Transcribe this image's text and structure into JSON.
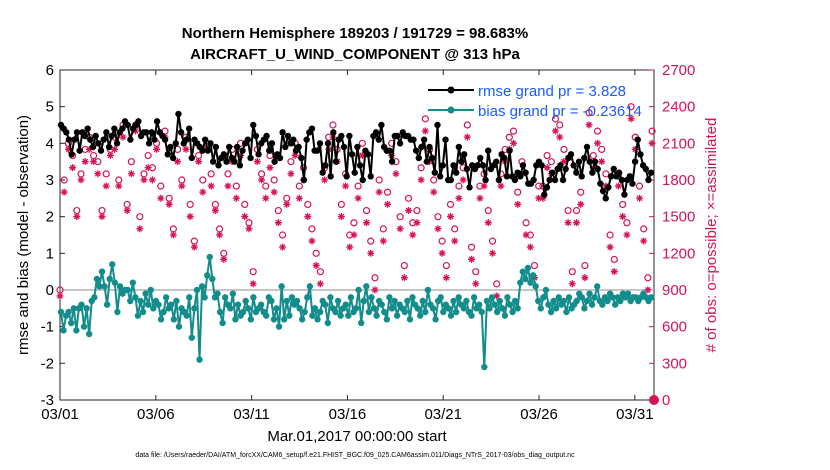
{
  "title_line1": "Northern Hemisphere 189203 / 191729 = 98.683%",
  "title_line2": "AIRCRAFT_U_WIND_COMPONENT @ 313 hPa",
  "xlabel": "Mar.01,2017 00:00:00 start",
  "ylabel_left": "rmse and bias (model - observation)",
  "ylabel_right": "# of obs: o=possible; ×=assimilated",
  "footer": "data file: /Users/raeder/DAI/ATM_forcXX/CAM6_setup/f.e21.FHIST_BGC.f09_025.CAM6assim.011/Diags_NTrS_2017-03/obs_diag_output.nc",
  "colors": {
    "rmse": "#000000",
    "bias": "#138c8c",
    "obs": "#d6125b",
    "legend_text": "#1a5cff",
    "zero_line": "#b3b3b3"
  },
  "chart_data": {
    "type": "line",
    "x_label_note": "time in days since Mar.01 (4 samples per day)",
    "x_ticks": [
      0,
      5,
      10,
      15,
      20,
      25,
      30
    ],
    "x_tick_labels": [
      "03/01",
      "03/06",
      "03/11",
      "03/16",
      "03/21",
      "03/26",
      "03/31"
    ],
    "xlim": [
      0,
      31
    ],
    "ylim_left": [
      -3,
      6
    ],
    "y_ticks_left": [
      -3,
      -2,
      -1,
      0,
      1,
      2,
      3,
      4,
      5,
      6
    ],
    "ylim_right": [
      0,
      2700
    ],
    "y_ticks_right": [
      0,
      300,
      600,
      900,
      1200,
      1500,
      1800,
      2100,
      2400,
      2700
    ],
    "legend": [
      "rmse grand pr = 3.828",
      "bias grand pr = -0.23614"
    ],
    "series": [
      {
        "name": "rmse",
        "axis": "left",
        "marker": "dot-line",
        "values": [
          4.5,
          4.4,
          4.3,
          4.1,
          3.7,
          4.1,
          4.3,
          3.8,
          4.3,
          4.2,
          4.4,
          4.1,
          3.9,
          4.2,
          4.0,
          3.8,
          4.1,
          4.3,
          3.9,
          4.2,
          4.4,
          4.0,
          4.3,
          4.4,
          4.6,
          4.5,
          4.1,
          4.4,
          4.5,
          4.6,
          4.2,
          4.3,
          4.3,
          4.0,
          4.3,
          4.1,
          4.6,
          4.3,
          4.2,
          4.1,
          3.7,
          3.9,
          3.6,
          4.0,
          4.8,
          4.3,
          4.0,
          4.1,
          4.4,
          3.6,
          4.1,
          4.0,
          3.9,
          3.8,
          4.1,
          3.8,
          4.0,
          3.5,
          3.9,
          3.4,
          3.6,
          3.7,
          3.5,
          3.9,
          3.6,
          3.5,
          3.9,
          3.4,
          3.8,
          4.0,
          4.1,
          3.6,
          4.5,
          4.2,
          3.7,
          4.0,
          4.1,
          4.2,
          3.8,
          4.0,
          3.5,
          3.7,
          3.6,
          4.3,
          3.9,
          4.2,
          4.0,
          4.1,
          3.8,
          3.9,
          3.6,
          3.0,
          4.1,
          4.3,
          4.4,
          3.8,
          3.8,
          4.0,
          3.2,
          3.4,
          4.0,
          3.1,
          4.3,
          3.5,
          4.1,
          4.2,
          3.9,
          3.1,
          4.2,
          3.7,
          3.2,
          3.9,
          3.4,
          3.0,
          3.8,
          3.7,
          3.1,
          4.2,
          4.3,
          4.1,
          4.5,
          3.9,
          3.8,
          3.8,
          3.5,
          4.2,
          4.2,
          4.0,
          4.3,
          4.2,
          4.2,
          4.1,
          4.1,
          3.8,
          3.6,
          3.9,
          4.1,
          3.5,
          3.9,
          3.6,
          3.2,
          4.5,
          3.1,
          3.4,
          4.1,
          3.0,
          3.0,
          3.4,
          3.2,
          3.9,
          3.5,
          3.7,
          3.3,
          2.8,
          3.4,
          3.3,
          3.4,
          3.6,
          3.4,
          3.0,
          3.8,
          3.3,
          3.4,
          3.5,
          3.0,
          3.7,
          3.6,
          3.1,
          3.8,
          3.1,
          3.0,
          3.2,
          3.1,
          3.4,
          3.2,
          2.9,
          2.9,
          3.0,
          3.4,
          3.5,
          3.4,
          2.6,
          2.8,
          3.0,
          3.2,
          3.0,
          3.3,
          3.4,
          3.0,
          3.3,
          3.6,
          3.7,
          3.4,
          3.2,
          3.5,
          3.1,
          3.6,
          3.9,
          3.5,
          3.2,
          3.5,
          3.3,
          2.9,
          2.7,
          2.5,
          2.8,
          3.1,
          3.3,
          3.1,
          3.2,
          3.0,
          2.6,
          3.0,
          3.1,
          2.9,
          3.5,
          4.1,
          3.7,
          3.4,
          3.3,
          3.0,
          3.2
        ]
      },
      {
        "name": "bias",
        "axis": "left",
        "marker": "dot-line",
        "values": [
          -0.6,
          -1.1,
          -0.7,
          -0.6,
          -0.9,
          -0.5,
          -1.1,
          -0.5,
          -0.4,
          -1.0,
          -0.5,
          -1.2,
          -0.3,
          -0.2,
          0.3,
          0.1,
          0.5,
          0.1,
          -0.4,
          0.3,
          0.7,
          0.2,
          -0.6,
          0.1,
          -0.1,
          0.0,
          0.0,
          -0.3,
          0.2,
          -0.2,
          -0.7,
          -0.3,
          -0.6,
          -0.1,
          -0.4,
          0.0,
          -0.5,
          -0.3,
          -0.4,
          -0.8,
          -0.6,
          -0.2,
          -0.5,
          -0.4,
          -0.8,
          -0.3,
          -1.0,
          -0.5,
          -0.6,
          -0.7,
          -0.2,
          -1.3,
          -0.5,
          0.0,
          -1.9,
          0.1,
          -0.2,
          0.4,
          0.9,
          0.3,
          -0.2,
          -0.1,
          -0.6,
          -0.9,
          -0.2,
          -0.4,
          -0.5,
          -0.1,
          -0.8,
          -0.4,
          -0.7,
          -0.6,
          -0.3,
          -0.5,
          -0.8,
          -0.2,
          -0.6,
          -0.5,
          -0.4,
          -0.6,
          -0.7,
          -0.2,
          -0.3,
          -0.8,
          -0.5,
          -1.0,
          0.1,
          -0.8,
          -0.3,
          -0.7,
          -0.2,
          -0.4,
          -0.3,
          -0.5,
          -0.8,
          -0.6,
          -0.2,
          0.1,
          -0.7,
          -0.5,
          -0.8,
          -0.6,
          -0.3,
          -0.4,
          -0.9,
          -0.2,
          -0.5,
          -0.6,
          -0.3,
          -0.7,
          -0.5,
          -0.4,
          -0.7,
          -0.2,
          -0.6,
          -0.5,
          0.0,
          -0.9,
          -0.3,
          0.1,
          -0.6,
          -0.2,
          -0.5,
          -0.7,
          -0.3,
          -0.4,
          -0.6,
          -0.8,
          -0.2,
          -0.5,
          -0.3,
          -0.7,
          -0.4,
          -0.5,
          -0.6,
          -0.3,
          -0.8,
          -0.2,
          -0.4,
          -0.5,
          -0.7,
          -0.3,
          -0.6,
          0.0,
          -0.4,
          -0.5,
          -0.8,
          -0.3,
          -0.2,
          -0.6,
          -0.4,
          -0.5,
          -0.7,
          -0.3,
          -0.6,
          -0.2,
          -0.4,
          -0.5,
          -0.3,
          -0.6,
          -0.7,
          -0.2,
          -0.5,
          -0.4,
          -0.6,
          -2.1,
          -0.3,
          -0.5,
          -0.2,
          -0.4,
          -0.6,
          -0.3,
          -0.5,
          -0.7,
          -0.2,
          -0.4,
          -0.6,
          -0.3,
          -0.5,
          0.2,
          0.5,
          0.3,
          0.6,
          0.2,
          0.4,
          0.1,
          -0.3,
          -0.5,
          -0.2,
          0.0,
          -0.4,
          -0.6,
          -0.3,
          -0.5,
          -0.2,
          -0.4,
          -0.3,
          -0.6,
          -0.2,
          -0.5,
          -0.4,
          -0.3,
          -0.1,
          -0.2,
          -0.5,
          -0.3,
          -0.1,
          -0.4,
          -0.2,
          0.1,
          -0.3,
          -0.4,
          -0.2,
          -0.3,
          -0.1,
          -0.2,
          -0.4,
          -0.2,
          -0.3,
          -0.1,
          -0.2,
          -0.1,
          -0.3,
          -0.2,
          -0.2,
          -0.3,
          -0.2,
          -0.1,
          -0.2,
          -0.3,
          -0.2
        ]
      },
      {
        "name": "obs possible",
        "axis": "right",
        "marker": "circle",
        "values": [
          900,
          1800,
          2100,
          2000,
          1550,
          1850,
          2050,
          2150,
          2000,
          1950,
          1550,
          1850,
          2050,
          2150,
          1800,
          2250,
          1600,
          1950,
          2250,
          1500,
          1850,
          2000,
          1900,
          2100,
          1750,
          2200,
          1650,
          1400,
          2050,
          1800,
          2150,
          1600,
          1300,
          2000,
          1800,
          2100,
          1850,
          1600,
          1400,
          1200,
          1850,
          2050,
          1750,
          2100,
          1600,
          1450,
          1050,
          2050,
          1850,
          1750,
          2000,
          1800,
          1550,
          1350,
          1650,
          1950,
          2100,
          1750,
          1900,
          1600,
          1400,
          1200,
          1050,
          1900,
          2150,
          2250,
          2050,
          1600,
          1850,
          1350,
          1450,
          1750,
          2100,
          1550,
          1300,
          1000,
          1800,
          1400,
          1700,
          2100,
          1950,
          1500,
          1100,
          1650,
          1450,
          1550,
          1900,
          2300,
          2050,
          1800,
          1500,
          1300,
          1100,
          1600,
          1400,
          1750,
          1900,
          2250,
          1250,
          1050,
          1750,
          1850,
          1550,
          1300,
          950,
          1850,
          2050,
          2150,
          2200,
          1700,
          1950,
          1450,
          1350,
          1100,
          1750,
          1750,
          2000,
          1950,
          2300,
          2250,
          2050,
          1550,
          1050,
          1550,
          1700,
          1100,
          2350,
          2000,
          2200,
          2050,
          1850,
          1350,
          1150,
          1850,
          1600,
          1450,
          2400,
          2150,
          1750,
          1400,
          1000,
          2200
        ]
      },
      {
        "name": "obs assimilated",
        "axis": "right",
        "marker": "asterisk",
        "values": [
          900,
          1750,
          2100,
          1950,
          1550,
          1850,
          2000,
          2100,
          2000,
          1900,
          1550,
          1800,
          2050,
          2100,
          1800,
          2200,
          1600,
          1900,
          2250,
          1450,
          1850,
          1950,
          1850,
          2100,
          1700,
          2200,
          1650,
          1400,
          2000,
          1800,
          2100,
          1550,
          1300,
          2000,
          1750,
          2100,
          1800,
          1600,
          1400,
          1200,
          1800,
          2000,
          1700,
          2050,
          1550,
          1450,
          1000,
          2000,
          1850,
          1700,
          1950,
          1750,
          1500,
          1300,
          1650,
          1900,
          2050,
          1700,
          1850,
          1550,
          1350,
          1150,
          1000,
          1850,
          2100,
          2200,
          2000,
          1550,
          1800,
          1300,
          1400,
          1700,
          2050,
          1500,
          1250,
          950,
          1750,
          1350,
          1650,
          2050,
          1900,
          1450,
          1050,
          1600,
          1400,
          1500,
          1850,
          2250,
          2000,
          1750,
          1450,
          1250,
          1050,
          1550,
          1350,
          1700,
          1850,
          2200,
          1200,
          1000,
          1700,
          1800,
          1500,
          1250,
          900,
          1800,
          2000,
          2100,
          2150,
          1650,
          1900,
          1400,
          1300,
          1050,
          1700,
          1700,
          1950,
          1900,
          2250,
          2200,
          2000,
          1500,
          1000,
          1500,
          1650,
          1050,
          2300,
          1950,
          2150,
          2000,
          1800,
          1300,
          1100,
          1800,
          1550,
          1400,
          2350,
          2100,
          1700,
          1350,
          950,
          2150
        ]
      }
    ]
  }
}
